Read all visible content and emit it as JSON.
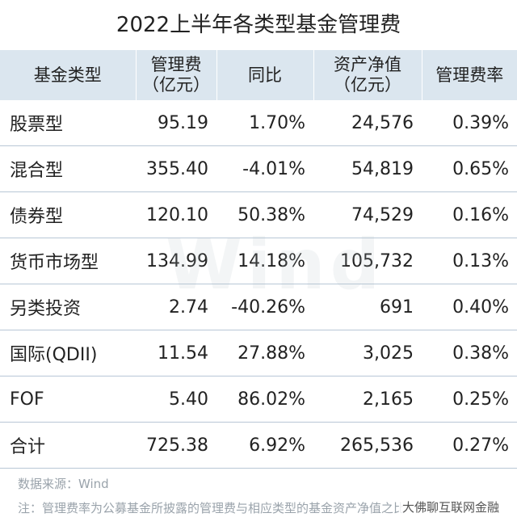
{
  "title": "2022上半年各类型基金管理费",
  "watermark": "Wind",
  "table": {
    "headers": [
      {
        "line1": "基金类型",
        "line2": ""
      },
      {
        "line1": "管理费",
        "line2": "（亿元）"
      },
      {
        "line1": "同比",
        "line2": ""
      },
      {
        "line1": "资产净值",
        "line2": "（亿元）"
      },
      {
        "line1": "管理费率",
        "line2": ""
      }
    ],
    "rows": [
      [
        "股票型",
        "95.19",
        "1.70%",
        "24,576",
        "0.39%"
      ],
      [
        "混合型",
        "355.40",
        "-4.01%",
        "54,819",
        "0.65%"
      ],
      [
        "债券型",
        "120.10",
        "50.38%",
        "74,529",
        "0.16%"
      ],
      [
        "货币市场型",
        "134.99",
        "14.18%",
        "105,732",
        "0.13%"
      ],
      [
        "另类投资",
        "2.74",
        "-40.26%",
        "691",
        "0.40%"
      ],
      [
        "国际(QDII)",
        "11.54",
        "27.88%",
        "3,025",
        "0.38%"
      ],
      [
        "FOF",
        "5.40",
        "86.02%",
        "2,165",
        "0.25%"
      ],
      [
        "合计",
        "725.38",
        "6.92%",
        "265,536",
        "0.27%"
      ]
    ]
  },
  "source": "数据来源：Wind",
  "note": "注：管理费率为公募基金所披露的管理费与相应类型的基金资产净值之比",
  "account": "大佛聊互联网金融"
}
